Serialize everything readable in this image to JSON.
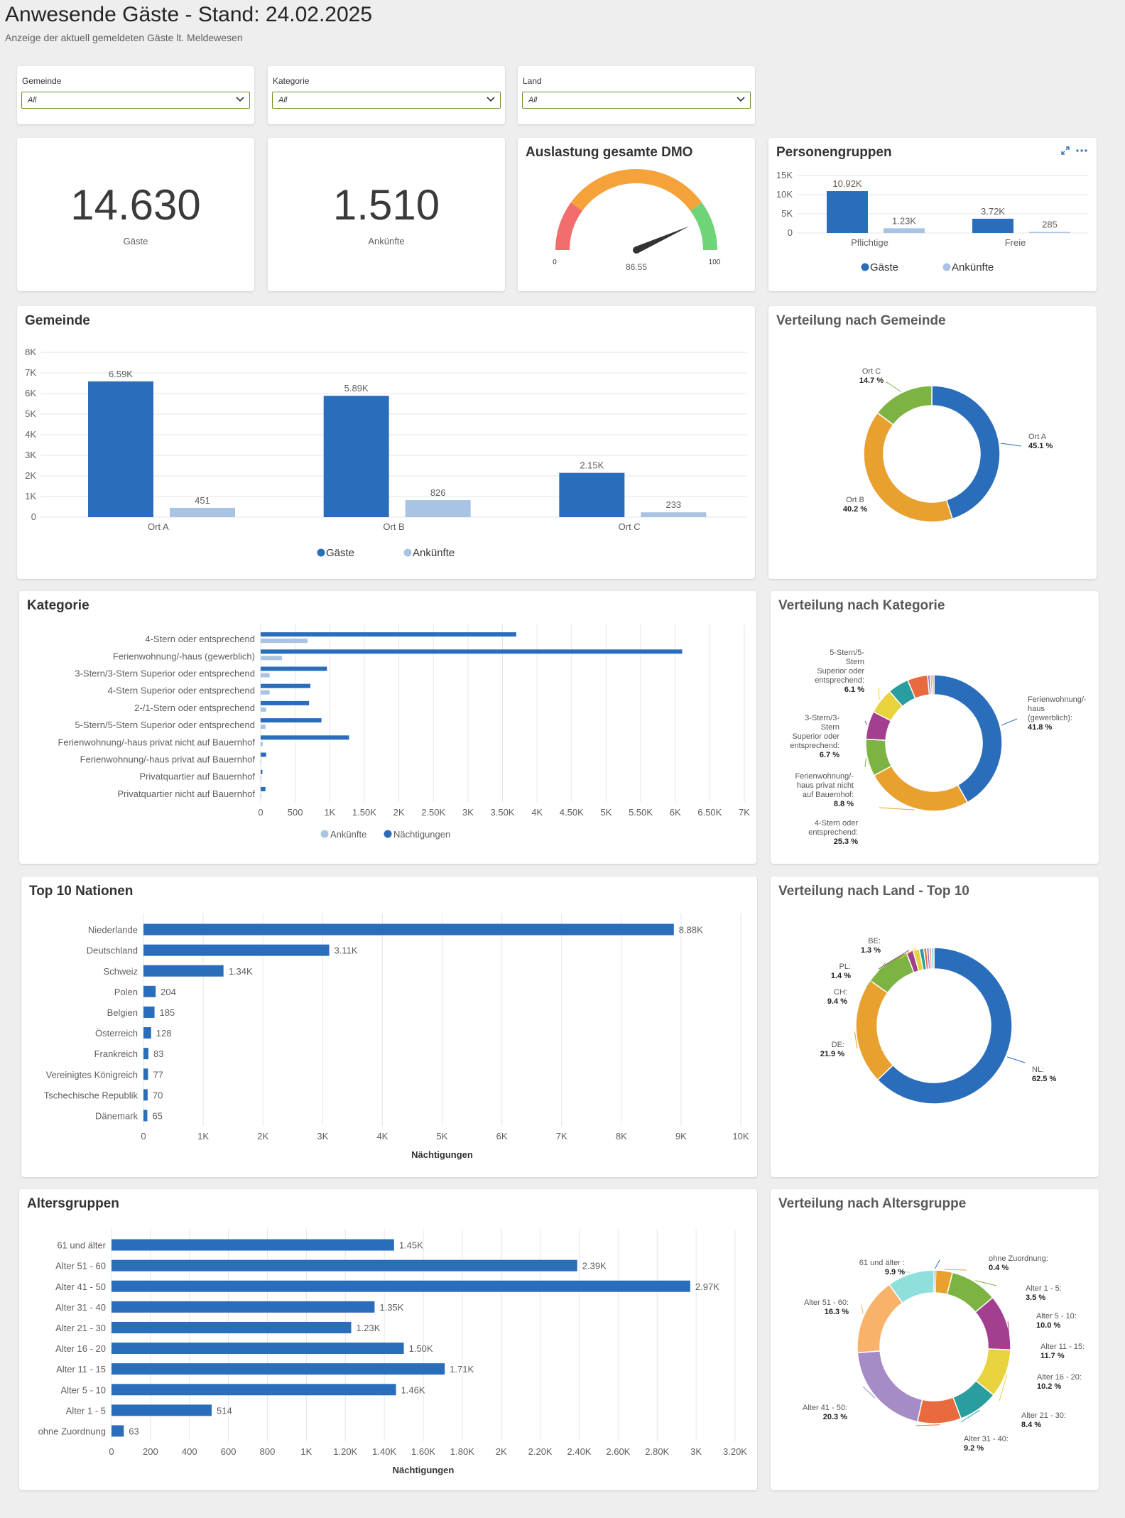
{
  "header": {
    "title": "Anwesende Gäste - Stand: 24.02.2025",
    "subtitle": "Anzeige der aktuell gemeldeten Gäste lt. Meldewesen"
  },
  "filters": [
    {
      "label": "Gemeinde",
      "value": "All"
    },
    {
      "label": "Kategorie",
      "value": "All"
    },
    {
      "label": "Land",
      "value": "All"
    }
  ],
  "kpis": [
    {
      "value": "14.630",
      "label": "Gäste"
    },
    {
      "value": "1.510",
      "label": "Ankünfte"
    }
  ],
  "colors": {
    "dark_blue": "#2a6ebb",
    "light_blue": "#a8c4e2"
  },
  "gauge": {
    "title": "Auslastung gesamte DMO",
    "value": 86.55,
    "value_label": "86.55",
    "min_label": "0",
    "max_label": "100"
  },
  "charts": {
    "personen": {
      "title": "Personengruppen",
      "chart_data": {
        "type": "bar",
        "categories": [
          "Pflichtige",
          "Freie"
        ],
        "series": [
          {
            "name": "Gäste",
            "values": [
              10920,
              3720
            ],
            "labels": [
              "10.92K",
              "3.72K"
            ]
          },
          {
            "name": "Ankünfte",
            "values": [
              1230,
              285
            ],
            "labels": [
              "1.23K",
              "285"
            ]
          }
        ],
        "yticks": [
          "0",
          "5K",
          "10K",
          "15K"
        ],
        "ylim": [
          0,
          15000
        ]
      }
    },
    "gemeinde": {
      "title": "Gemeinde",
      "chart_data": {
        "type": "bar",
        "categories": [
          "Ort A",
          "Ort B",
          "Ort C"
        ],
        "series": [
          {
            "name": "Gäste",
            "values": [
              6590,
              5890,
              2150
            ],
            "labels": [
              "6.59K",
              "5.89K",
              "2.15K"
            ]
          },
          {
            "name": "Ankünfte",
            "values": [
              451,
              826,
              233
            ],
            "labels": [
              "451",
              "826",
              "233"
            ]
          }
        ],
        "yticks": [
          "0",
          "1K",
          "2K",
          "3K",
          "4K",
          "5K",
          "6K",
          "7K",
          "8K"
        ],
        "ylim": [
          0,
          8000
        ]
      }
    },
    "gemeinde_donut": {
      "title": "Verteilung nach Gemeinde",
      "chart_data": {
        "type": "pie",
        "slices": [
          {
            "label": "Ort A",
            "pct": "45.1 %",
            "value": 45.1,
            "color": "#2a6ebb"
          },
          {
            "label": "Ort B",
            "pct": "40.2 %",
            "value": 40.2,
            "color": "#e8a02e"
          },
          {
            "label": "Ort C",
            "pct": "14.7 %",
            "value": 14.7,
            "color": "#7cb342"
          }
        ]
      }
    },
    "kategorie": {
      "title": "Kategorie",
      "chart_data": {
        "type": "bar",
        "orientation": "horizontal",
        "categories": [
          "4-Stern oder entsprechend",
          "Ferienwohnung/-haus (gewerblich)",
          "3-Stern/3-Stern Superior oder entsprechend",
          "4-Stern Superior oder entsprechend",
          "2-/1-Stern oder entsprechend",
          "5-Stern/5-Stern Superior oder entsprechend",
          "Ferienwohnung/-haus privat nicht auf Bauernhof",
          "Ferienwohnung/-haus privat auf Bauernhof",
          "Privatquartier auf Bauernhof",
          "Privatquartier nicht auf Bauernhof"
        ],
        "series": [
          {
            "name": "Nächtigungen",
            "values": [
              3700,
              6100,
              960,
              720,
              700,
              880,
              1280,
              80,
              25,
              70
            ]
          },
          {
            "name": "Ankünfte",
            "values": [
              680,
              310,
              130,
              130,
              80,
              70,
              30,
              10,
              5,
              10
            ]
          }
        ],
        "legend_order": [
          "Ankünfte",
          "Nächtigungen"
        ],
        "xticks": [
          "0",
          "500",
          "1K",
          "1.50K",
          "2K",
          "2.50K",
          "3K",
          "3.50K",
          "4K",
          "4.50K",
          "5K",
          "5.50K",
          "6K",
          "6.50K",
          "7K"
        ],
        "xlim": [
          0,
          7000
        ]
      }
    },
    "kategorie_donut": {
      "title": "Verteilung nach Kategorie",
      "chart_data": {
        "type": "pie",
        "slices": [
          {
            "label": "Ferienwohnung/-haus (gewerblich):",
            "pct": "41.8 %",
            "value": 41.8,
            "color": "#2a6ebb"
          },
          {
            "label": "4-Stern oder entsprechend:",
            "pct": "25.3 %",
            "value": 25.3,
            "color": "#e8a02e"
          },
          {
            "label": "Ferienwohnung/-haus privat nicht auf Bauernhof:",
            "pct": "8.8 %",
            "value": 8.8,
            "color": "#7cb342"
          },
          {
            "label": "3-Stern/3-Stern Superior oder entsprechend:",
            "pct": "6.7 %",
            "value": 6.7,
            "color": "#a33f8f"
          },
          {
            "label": "5-Stern/5-Stern Superior oder entsprechend:",
            "pct": "6.1 %",
            "value": 6.1,
            "color": "#e8d23e"
          },
          {
            "label": "",
            "pct": "",
            "value": 5.0,
            "color": "#2a9d9e"
          },
          {
            "label": "",
            "pct": "",
            "value": 4.8,
            "color": "#e86a3e"
          },
          {
            "label": "",
            "pct": "",
            "value": 0.6,
            "color": "#8e7cc3"
          },
          {
            "label": "",
            "pct": "",
            "value": 0.5,
            "color": "#f4a582"
          },
          {
            "label": "",
            "pct": "",
            "value": 0.4,
            "color": "#c0392b"
          }
        ],
        "label_lines": {
          "s0": [
            "Ferienwohnung/-",
            "haus",
            "(gewerblich):"
          ],
          "s1": [
            "4-Stern oder",
            "entsprechend:"
          ],
          "s2": [
            "Ferienwohnung/-",
            "haus privat nicht",
            "auf Bauernhof:"
          ],
          "s3": [
            "3-Stern/3-",
            "Stern",
            "Superior oder",
            "entsprechend:"
          ],
          "s4": [
            "5-Stern/5-",
            "Stern",
            "Superior oder",
            "entsprechend:"
          ]
        }
      }
    },
    "nationen": {
      "title": "Top 10 Nationen",
      "chart_data": {
        "type": "bar",
        "orientation": "horizontal",
        "categories": [
          "Niederlande",
          "Deutschland",
          "Schweiz",
          "Polen",
          "Belgien",
          "Österreich",
          "Frankreich",
          "Vereinigtes Königreich",
          "Tschechische Republik",
          "Dänemark"
        ],
        "values": [
          8880,
          3110,
          1340,
          204,
          185,
          128,
          83,
          77,
          70,
          65
        ],
        "labels": [
          "8.88K",
          "3.11K",
          "1.34K",
          "204",
          "185",
          "128",
          "83",
          "77",
          "70",
          "65"
        ],
        "xticks": [
          "0",
          "1K",
          "2K",
          "3K",
          "4K",
          "5K",
          "6K",
          "7K",
          "8K",
          "9K",
          "10K"
        ],
        "xlim": [
          0,
          10000
        ],
        "xlabel": "Nächtigungen"
      }
    },
    "land_donut": {
      "title": "Verteilung nach Land - Top 10",
      "chart_data": {
        "type": "pie",
        "slices": [
          {
            "label": "NL:",
            "pct": "62.5 %",
            "value": 62.5,
            "color": "#2a6ebb"
          },
          {
            "label": "DE:",
            "pct": "21.9 %",
            "value": 21.9,
            "color": "#e8a02e"
          },
          {
            "label": "CH:",
            "pct": "9.4 %",
            "value": 9.4,
            "color": "#7cb342"
          },
          {
            "label": "PL:",
            "pct": "1.4 %",
            "value": 1.4,
            "color": "#a33f8f"
          },
          {
            "label": "BE:",
            "pct": "1.3 %",
            "value": 1.3,
            "color": "#e8d23e"
          },
          {
            "label": "",
            "pct": "",
            "value": 0.9,
            "color": "#2a9d9e"
          },
          {
            "label": "",
            "pct": "",
            "value": 0.6,
            "color": "#e86a3e"
          },
          {
            "label": "",
            "pct": "",
            "value": 0.5,
            "color": "#8e7cc3"
          },
          {
            "label": "",
            "pct": "",
            "value": 0.5,
            "color": "#f4a582"
          },
          {
            "label": "",
            "pct": "",
            "value": 0.5,
            "color": "#7fd3d6"
          }
        ]
      }
    },
    "alter": {
      "title": "Altersgruppen",
      "chart_data": {
        "type": "bar",
        "orientation": "horizontal",
        "categories": [
          "61 und älter",
          "Alter 51 - 60",
          "Alter 41 - 50",
          "Alter 31 - 40",
          "Alter 21 - 30",
          "Alter 16 - 20",
          "Alter 11 - 15",
          "Alter 5 - 10",
          "Alter 1 - 5",
          "ohne Zuordnung"
        ],
        "values": [
          1450,
          2390,
          2970,
          1350,
          1230,
          1500,
          1710,
          1460,
          514,
          63
        ],
        "labels": [
          "1.45K",
          "2.39K",
          "2.97K",
          "1.35K",
          "1.23K",
          "1.50K",
          "1.71K",
          "1.46K",
          "514",
          "63"
        ],
        "xticks": [
          "0",
          "200",
          "400",
          "600",
          "800",
          "1K",
          "1.20K",
          "1.40K",
          "1.60K",
          "1.80K",
          "2K",
          "2.20K",
          "2.40K",
          "2.60K",
          "2.80K",
          "3K",
          "3.20K"
        ],
        "xlim": [
          0,
          3200
        ],
        "xlabel": "Nächtigungen"
      }
    },
    "alter_donut": {
      "title": "Verteilung nach Altersgruppe",
      "chart_data": {
        "type": "pie",
        "slices": [
          {
            "label": "ohne Zuordnung:",
            "pct": "0.4 %",
            "value": 0.4,
            "color": "#2a6ebb"
          },
          {
            "label": "Alter 1 - 5:",
            "pct": "3.5 %",
            "value": 3.5,
            "color": "#e8a02e"
          },
          {
            "label": "Alter 5 - 10:",
            "pct": "10.0 %",
            "value": 10.0,
            "color": "#7cb342"
          },
          {
            "label": "Alter 11 - 15:",
            "pct": "11.7 %",
            "value": 11.7,
            "color": "#a33f8f"
          },
          {
            "label": "Alter 16 - 20:",
            "pct": "10.2 %",
            "value": 10.2,
            "color": "#e8d23e"
          },
          {
            "label": "Alter 21 - 30:",
            "pct": "8.4 %",
            "value": 8.4,
            "color": "#2a9d9e"
          },
          {
            "label": "Alter 31 - 40:",
            "pct": "9.2 %",
            "value": 9.2,
            "color": "#e86a3e"
          },
          {
            "label": "Alter 41 - 50:",
            "pct": "20.3 %",
            "value": 20.3,
            "color": "#a68cc6"
          },
          {
            "label": "Alter 51 - 60:",
            "pct": "16.3 %",
            "value": 16.3,
            "color": "#f8b26a"
          },
          {
            "label": "61 und älter :",
            "pct": "9.9 %",
            "value": 9.9,
            "color": "#8fe0dc"
          }
        ]
      }
    }
  }
}
